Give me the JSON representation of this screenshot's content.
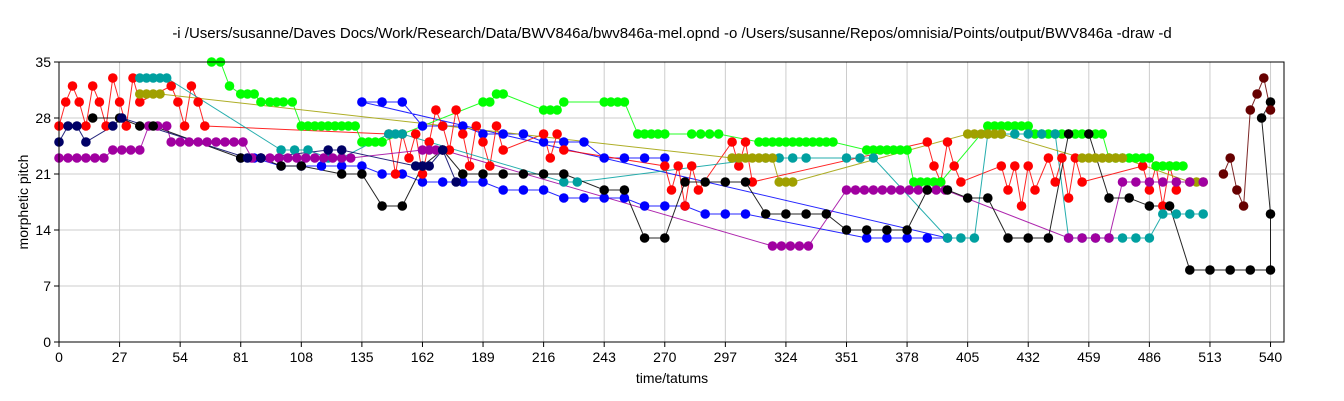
{
  "chart_data": {
    "type": "scatter",
    "title": "-i /Users/susanne/Daves Docs/Work/Research/Data/BWV846a/bwv846a-mel.opnd -o /Users/susanne/Repos/omnisia/Points/output/BWV846a -draw -d",
    "xlabel": "time/tatums",
    "ylabel": "morphetic pitch",
    "xlim": [
      0,
      546
    ],
    "ylim": [
      0,
      35
    ],
    "xticks": [
      "0",
      "27",
      "54",
      "81",
      "108",
      "135",
      "162",
      "189",
      "216",
      "243",
      "270",
      "297",
      "324",
      "351",
      "378",
      "405",
      "432",
      "459",
      "486",
      "513",
      "540"
    ],
    "yticks": [
      "0",
      "7",
      "14",
      "21",
      "28",
      "35"
    ],
    "grid": true,
    "series": [
      {
        "color": "#0000ff",
        "x": [
          81,
          87,
          99,
          108,
          117,
          126,
          135,
          144,
          153,
          162,
          171,
          180,
          189,
          198,
          207,
          216,
          225,
          234,
          243,
          252,
          261,
          270,
          279,
          288,
          297,
          306,
          360,
          369,
          378,
          387,
          396,
          135,
          144,
          153,
          162,
          171,
          180,
          189,
          198,
          207,
          216,
          225,
          234,
          243,
          252,
          261,
          270
        ],
        "y": [
          23,
          23,
          22,
          22,
          22,
          22,
          22,
          21,
          21,
          20,
          20,
          20,
          20,
          19,
          19,
          19,
          18,
          18,
          18,
          18,
          17,
          17,
          17,
          16,
          16,
          16,
          13,
          13,
          13,
          13,
          13,
          30,
          30,
          30,
          27,
          27,
          27,
          26,
          26,
          26,
          25,
          25,
          25,
          23,
          23,
          23,
          23
        ]
      },
      {
        "color": "#ff0000",
        "x": [
          0,
          3,
          6,
          9,
          12,
          15,
          18,
          21,
          24,
          27,
          30,
          33,
          36,
          50,
          53,
          56,
          59,
          62,
          65,
          147,
          150,
          153,
          156,
          159,
          162,
          165,
          168,
          171,
          174,
          177,
          180,
          183,
          186,
          189,
          192,
          195,
          198,
          216,
          219,
          222,
          225,
          270,
          273,
          276,
          279,
          282,
          285,
          300,
          303,
          306,
          309,
          387,
          390,
          393,
          396,
          399,
          402,
          420,
          423,
          426,
          429,
          432,
          435,
          441,
          444,
          447,
          450,
          453,
          456,
          483,
          486,
          489,
          492,
          495,
          498
        ],
        "y": [
          27,
          30,
          32,
          30,
          27,
          32,
          30,
          27,
          33,
          30,
          27,
          33,
          30,
          32,
          30,
          27,
          32,
          30,
          27,
          26,
          21,
          26,
          23,
          26,
          21,
          25,
          29,
          27,
          24,
          29,
          26,
          22,
          27,
          25,
          22,
          27,
          24,
          26,
          23,
          26,
          24,
          22,
          19,
          22,
          17,
          22,
          19,
          25,
          22,
          25,
          20,
          25,
          22,
          20,
          25,
          22,
          20,
          22,
          19,
          22,
          17,
          22,
          19,
          23,
          20,
          23,
          18,
          23,
          20,
          22,
          19,
          22,
          17,
          22,
          19
        ]
      },
      {
        "color": "#00ff00",
        "x": [
          68,
          72,
          76,
          81,
          84,
          87,
          90,
          94,
          97,
          100,
          104,
          108,
          111,
          114,
          117,
          120,
          123,
          126,
          129,
          132,
          135,
          138,
          141,
          144,
          189,
          192,
          195,
          198,
          216,
          219,
          222,
          225,
          243,
          246,
          249,
          252,
          258,
          261,
          264,
          267,
          270,
          282,
          286,
          290,
          294,
          312,
          315,
          318,
          321,
          324,
          327,
          330,
          333,
          336,
          339,
          342,
          345,
          360,
          363,
          366,
          369,
          372,
          375,
          378,
          381,
          384,
          387,
          390,
          393,
          414,
          417,
          420,
          423,
          426,
          429,
          432,
          435,
          438,
          441,
          444,
          447,
          450,
          453,
          456,
          459,
          462,
          465,
          468,
          471,
          474,
          477,
          480,
          483,
          486,
          489,
          492,
          495,
          498,
          501
        ],
        "y": [
          35,
          35,
          32,
          31,
          31,
          31,
          30,
          30,
          30,
          30,
          30,
          27,
          27,
          27,
          27,
          27,
          27,
          27,
          27,
          27,
          25,
          25,
          25,
          25,
          30,
          30,
          31,
          31,
          29,
          29,
          29,
          30,
          30,
          30,
          30,
          30,
          26,
          26,
          26,
          26,
          26,
          26,
          26,
          26,
          26,
          25,
          25,
          25,
          25,
          25,
          25,
          25,
          25,
          25,
          25,
          25,
          25,
          24,
          24,
          24,
          24,
          24,
          24,
          24,
          20,
          20,
          20,
          20,
          20,
          27,
          27,
          27,
          27,
          27,
          27,
          27,
          26,
          26,
          26,
          26,
          26,
          26,
          26,
          26,
          26,
          26,
          26,
          23,
          23,
          23,
          23,
          23,
          23,
          23,
          22,
          22,
          22,
          22,
          22
        ]
      },
      {
        "color": "#00a0a0",
        "x": [
          36,
          39,
          42,
          45,
          48,
          99,
          105,
          111,
          120,
          126,
          147,
          150,
          153,
          225,
          231,
          315,
          321,
          327,
          333,
          351,
          357,
          363,
          396,
          402,
          408,
          414,
          420,
          426,
          432,
          438,
          444,
          450,
          456,
          462,
          468,
          474,
          480,
          486,
          492,
          498,
          504,
          510
        ],
        "y": [
          33,
          33,
          33,
          33,
          33,
          24,
          24,
          24,
          23,
          23,
          26,
          26,
          26,
          20,
          20,
          23,
          23,
          23,
          23,
          23,
          23,
          23,
          13,
          13,
          13,
          26,
          26,
          26,
          26,
          26,
          26,
          13,
          13,
          13,
          13,
          13,
          13,
          13,
          16,
          16,
          16,
          16
        ]
      },
      {
        "color": "#a0a000",
        "x": [
          36,
          39,
          42,
          45,
          300,
          303,
          306,
          309,
          312,
          315,
          318,
          321,
          324,
          327,
          405,
          408,
          411,
          414,
          417,
          420,
          456,
          459,
          462,
          465,
          468,
          471,
          474,
          504,
          507,
          510
        ],
        "y": [
          31,
          31,
          31,
          31,
          23,
          23,
          23,
          23,
          23,
          23,
          23,
          20,
          20,
          20,
          26,
          26,
          26,
          26,
          26,
          26,
          23,
          23,
          23,
          23,
          23,
          23,
          23,
          20,
          20,
          20
        ]
      },
      {
        "color": "#a000a0",
        "x": [
          0,
          4,
          8,
          12,
          16,
          20,
          24,
          28,
          32,
          36,
          40,
          44,
          48,
          50,
          54,
          58,
          62,
          66,
          70,
          74,
          78,
          82,
          86,
          90,
          94,
          98,
          102,
          106,
          110,
          114,
          118,
          122,
          126,
          130,
          162,
          165,
          168,
          171,
          318,
          322,
          326,
          330,
          334,
          351,
          355,
          359,
          363,
          367,
          371,
          375,
          379,
          383,
          387,
          391,
          395,
          450,
          456,
          462,
          468,
          474,
          480,
          486,
          492,
          498,
          504,
          510
        ],
        "y": [
          23,
          23,
          23,
          23,
          23,
          23,
          24,
          24,
          24,
          24,
          27,
          27,
          27,
          25,
          25,
          25,
          25,
          25,
          25,
          25,
          25,
          25,
          23,
          23,
          23,
          23,
          23,
          23,
          23,
          23,
          23,
          23,
          23,
          23,
          24,
          24,
          24,
          24,
          12,
          12,
          12,
          12,
          12,
          19,
          19,
          19,
          19,
          19,
          19,
          19,
          19,
          19,
          19,
          19,
          19,
          13,
          13,
          13,
          13,
          20,
          20,
          20,
          20,
          20,
          20,
          20
        ]
      },
      {
        "color": "#000000",
        "x": [
          15,
          27,
          36,
          42,
          81,
          90,
          99,
          108,
          126,
          135,
          144,
          153,
          162,
          171,
          180,
          189,
          198,
          207,
          216,
          225,
          243,
          252,
          261,
          270,
          279,
          288,
          297,
          306,
          315,
          324,
          333,
          342,
          351,
          360,
          369,
          378,
          387,
          396,
          405,
          414,
          423,
          432,
          441,
          450,
          459,
          468,
          477,
          486,
          495,
          504,
          513,
          522,
          531,
          540,
          540,
          536,
          540
        ],
        "y": [
          28,
          28,
          27,
          27,
          23,
          23,
          22,
          22,
          21,
          21,
          17,
          17,
          22,
          24,
          21,
          21,
          21,
          21,
          21,
          21,
          19,
          19,
          13,
          13,
          20,
          20,
          20,
          20,
          16,
          16,
          16,
          16,
          14,
          14,
          14,
          14,
          19,
          19,
          18,
          18,
          13,
          13,
          13,
          26,
          26,
          18,
          18,
          17,
          17,
          9,
          9,
          9,
          9,
          9,
          16,
          28,
          30
        ]
      },
      {
        "color": "#660000",
        "x": [
          519,
          522,
          525,
          528,
          531,
          534,
          537,
          540
        ],
        "y": [
          21,
          23,
          19,
          17,
          29,
          31,
          33,
          29
        ]
      },
      {
        "color": "#000066",
        "x": [
          0,
          4,
          8,
          12,
          24,
          28,
          84,
          90,
          120,
          126,
          159,
          162,
          165,
          171,
          177
        ],
        "y": [
          25,
          27,
          27,
          25,
          27,
          28,
          23,
          23,
          24,
          24,
          22,
          22,
          22,
          24,
          20
        ]
      }
    ]
  }
}
